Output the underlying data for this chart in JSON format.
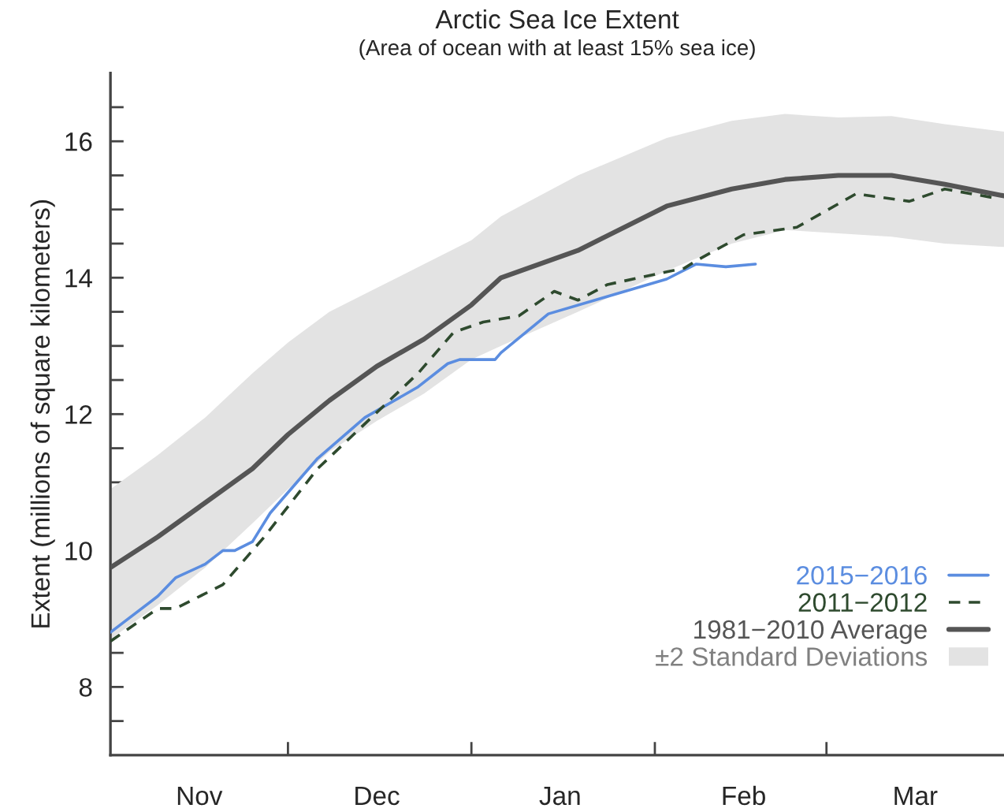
{
  "chart_data": {
    "type": "line",
    "title": "Arctic Sea Ice Extent",
    "subtitle": "(Area of ocean with at least 15% sea ice)",
    "ylabel": "Extent (millions of square kilometers)",
    "annotations": [
      "±2 Standard Deviations"
    ],
    "xlim": [
      "2015-11-01",
      "2016-03-31"
    ],
    "xticks": [
      {
        "value": "2015-12-01",
        "label": null
      },
      {
        "value": "2016-01-01",
        "label": null
      },
      {
        "value": "2016-02-01",
        "label": null
      },
      {
        "value": "2016-03-01",
        "label": null
      },
      {
        "value": "2015-11-16",
        "label": "Nov"
      },
      {
        "value": "2015-12-16",
        "label": "Dec"
      },
      {
        "value": "2016-01-16",
        "label": "Jan"
      },
      {
        "value": "2016-02-16",
        "label": "Feb"
      },
      {
        "value": "2016-03-16",
        "label": "Mar"
      }
    ],
    "ylim": [
      7,
      17
    ],
    "yticks": [
      {
        "value": 7.5,
        "label": null
      },
      8,
      {
        "value": 8.5,
        "label": null
      },
      {
        "value": 9,
        "label": null
      },
      {
        "value": 9.5,
        "label": null
      },
      10,
      {
        "value": 10.5,
        "label": null
      },
      {
        "value": 11,
        "label": null
      },
      {
        "value": 11.5,
        "label": null
      },
      12,
      {
        "value": 12.5,
        "label": null
      },
      {
        "value": 13,
        "label": null
      },
      {
        "value": 13.5,
        "label": null
      },
      14,
      {
        "value": 14.5,
        "label": null
      },
      {
        "value": 15,
        "label": null
      },
      {
        "value": 15.5,
        "label": null
      },
      16,
      {
        "value": 16.5,
        "label": null
      }
    ],
    "grid": false,
    "legend": "bottom right",
    "series": [
      {
        "name": "2015−2016",
        "color": "#5b8de0",
        "line_style": "solid",
        "x": [
          "2015-11-01",
          "2015-11-09",
          "2015-11-12",
          "2015-11-17",
          "2015-11-20",
          "2015-11-22",
          "2015-11-25",
          "2015-11-28",
          "2015-12-06",
          "2015-12-14",
          "2015-12-23",
          "2015-12-28",
          "2015-12-30",
          "2016-01-05",
          "2016-01-06",
          "2016-01-14",
          "2016-01-23",
          "2016-02-03",
          "2016-02-08",
          "2016-02-13",
          "2016-02-18"
        ],
        "values": [
          8.8,
          9.33,
          9.6,
          9.8,
          10.0,
          10.0,
          10.13,
          10.55,
          11.35,
          11.95,
          12.4,
          12.74,
          12.8,
          12.8,
          12.9,
          13.47,
          13.7,
          13.98,
          14.2,
          14.16,
          14.2
        ]
      },
      {
        "name": "2011−2012",
        "color": "#2e4a2e",
        "line_style": "dashed",
        "x": [
          "2015-11-01",
          "2015-11-09",
          "2015-11-12",
          "2015-11-20",
          "2015-11-27",
          "2015-12-06",
          "2015-12-23",
          "2015-12-29",
          "2016-01-03",
          "2016-01-09",
          "2016-01-15",
          "2016-01-19",
          "2016-01-24",
          "2016-02-06",
          "2016-02-08",
          "2016-02-16",
          "2016-02-25",
          "2016-03-06",
          "2016-03-15",
          "2016-03-21",
          "2016-03-30"
        ],
        "values": [
          8.67,
          9.15,
          9.15,
          9.5,
          10.2,
          11.2,
          12.6,
          13.2,
          13.35,
          13.44,
          13.8,
          13.67,
          13.9,
          14.14,
          14.25,
          14.63,
          14.74,
          15.23,
          15.12,
          15.3,
          15.16
        ]
      },
      {
        "name": "1981−2010 Average",
        "color": "#555555",
        "line_style": "solid",
        "x": [
          "2015-11-01",
          "2015-11-09",
          "2015-11-17",
          "2015-11-25",
          "2015-12-01",
          "2015-12-08",
          "2015-12-16",
          "2015-12-24",
          "2016-01-01",
          "2016-01-06",
          "2016-01-19",
          "2016-02-03",
          "2016-02-14",
          "2016-02-23",
          "2016-03-03",
          "2016-03-12",
          "2016-03-21",
          "2016-03-31"
        ],
        "values": [
          9.75,
          10.2,
          10.7,
          11.2,
          11.7,
          12.2,
          12.7,
          13.1,
          13.6,
          14.0,
          14.4,
          15.05,
          15.3,
          15.44,
          15.5,
          15.5,
          15.37,
          15.2
        ],
        "lower": [
          8.7,
          9.2,
          9.75,
          10.4,
          10.9,
          11.45,
          11.9,
          12.3,
          12.8,
          13.0,
          13.5,
          14.1,
          14.5,
          14.7,
          14.65,
          14.6,
          14.5,
          14.45
        ],
        "upper": [
          10.9,
          11.4,
          11.95,
          12.6,
          13.05,
          13.5,
          13.85,
          14.2,
          14.55,
          14.9,
          15.5,
          16.05,
          16.3,
          16.4,
          16.35,
          16.37,
          16.25,
          16.14
        ]
      }
    ]
  }
}
